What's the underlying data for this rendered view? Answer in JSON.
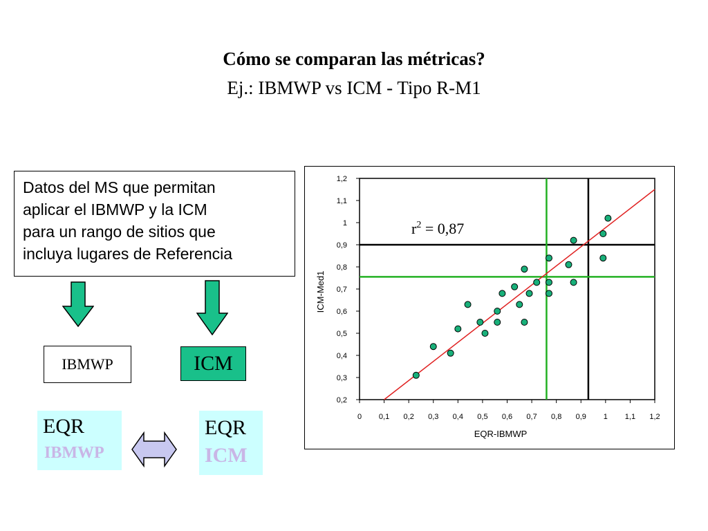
{
  "header": {
    "title": "Cómo se comparan las métricas?",
    "subtitle": "Ej.: IBMWP vs ICM - Tipo R-M1"
  },
  "info_box": {
    "lines": [
      "Datos del MS que permitan",
      "aplicar el IBMWP y la ICM",
      "para un rango de sitios que",
      "incluya lugares de Referencia"
    ]
  },
  "boxes": {
    "ibmwp_label": "IBMWP",
    "icm_label": "ICM",
    "eqr_left_main": "EQR",
    "eqr_left_sub": "IBMWP",
    "eqr_right_main": "EQR",
    "eqr_right_sub": "ICM"
  },
  "colors": {
    "arrow_green": "#19c08a",
    "icm_box": "#19c08a",
    "eqr_box_bg": "#ccffff",
    "eqr_sub_text": "#c9b6e6",
    "double_arrow_fill": "#c8c8f0",
    "regression_line": "#e02020",
    "threshold_green": "#22b022",
    "point_fill": "#19b07a"
  },
  "icons": {
    "down_arrow": "down-arrow-icon",
    "double_arrow": "double-arrow-icon"
  },
  "chart_data": {
    "type": "scatter",
    "xlabel": "EQR-IBMWP",
    "ylabel": "ICM-Med1",
    "xlim": [
      0,
      1.2
    ],
    "ylim": [
      0.2,
      1.2
    ],
    "xticks": [
      "0",
      "0,1",
      "0,2",
      "0,3",
      "0,4",
      "0,5",
      "0,6",
      "0,7",
      "0,8",
      "0,9",
      "1",
      "1,1",
      "1,2"
    ],
    "yticks": [
      "0,2",
      "0,3",
      "0,4",
      "0,5",
      "0,6",
      "0,7",
      "0,8",
      "0,9",
      "1",
      "1,1",
      "1,2"
    ],
    "annotation": "r² = 0,87",
    "annotation_base": "r",
    "annotation_sup": "2",
    "annotation_rest": " = 0,87",
    "grid": false,
    "points": [
      {
        "x": 0.23,
        "y": 0.31
      },
      {
        "x": 0.3,
        "y": 0.44
      },
      {
        "x": 0.37,
        "y": 0.41
      },
      {
        "x": 0.4,
        "y": 0.52
      },
      {
        "x": 0.44,
        "y": 0.63
      },
      {
        "x": 0.49,
        "y": 0.55
      },
      {
        "x": 0.51,
        "y": 0.5
      },
      {
        "x": 0.56,
        "y": 0.55
      },
      {
        "x": 0.56,
        "y": 0.6
      },
      {
        "x": 0.58,
        "y": 0.68
      },
      {
        "x": 0.63,
        "y": 0.71
      },
      {
        "x": 0.65,
        "y": 0.63
      },
      {
        "x": 0.67,
        "y": 0.55
      },
      {
        "x": 0.67,
        "y": 0.79
      },
      {
        "x": 0.69,
        "y": 0.68
      },
      {
        "x": 0.72,
        "y": 0.73
      },
      {
        "x": 0.77,
        "y": 0.84
      },
      {
        "x": 0.77,
        "y": 0.73
      },
      {
        "x": 0.77,
        "y": 0.68
      },
      {
        "x": 0.85,
        "y": 0.81
      },
      {
        "x": 0.87,
        "y": 0.92
      },
      {
        "x": 0.87,
        "y": 0.73
      },
      {
        "x": 0.99,
        "y": 0.95
      },
      {
        "x": 0.99,
        "y": 0.84
      },
      {
        "x": 1.01,
        "y": 1.02
      }
    ],
    "regression_line": {
      "x": [
        0.1,
        1.2
      ],
      "y": [
        0.2,
        1.15
      ]
    },
    "threshold_lines": {
      "black_vertical_x": 0.93,
      "black_horizontal_y": 0.9,
      "green_vertical_x": 0.76,
      "green_horizontal_y": 0.755
    }
  }
}
